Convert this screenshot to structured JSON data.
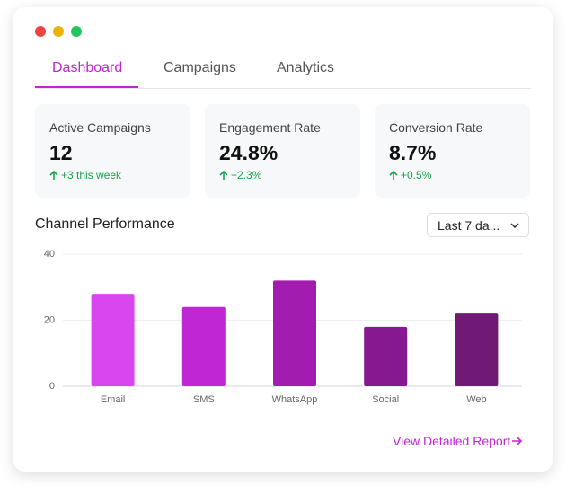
{
  "window": {
    "tabs": [
      "Dashboard",
      "Campaigns",
      "Analytics"
    ],
    "active_tab": 0
  },
  "stats": [
    {
      "label": "Active Campaigns",
      "value": "12",
      "change": "+3 this week"
    },
    {
      "label": "Engagement Rate",
      "value": "24.8%",
      "change": "+2.3%"
    },
    {
      "label": "Conversion Rate",
      "value": "8.7%",
      "change": "+0.5%"
    }
  ],
  "section_title": "Channel Performance",
  "range_select": "Last 7 da...",
  "link": "View Detailed Report",
  "chart_data": {
    "type": "bar",
    "categories": [
      "Email",
      "SMS",
      "WhatsApp",
      "Social",
      "Web"
    ],
    "values": [
      28,
      24,
      32,
      18,
      22
    ],
    "colors": [
      "#d946ef",
      "#c026d3",
      "#a21caf",
      "#86198f",
      "#701a75"
    ],
    "ylim": [
      0,
      40
    ],
    "yticks": [
      0,
      20,
      40
    ],
    "grid": true
  }
}
